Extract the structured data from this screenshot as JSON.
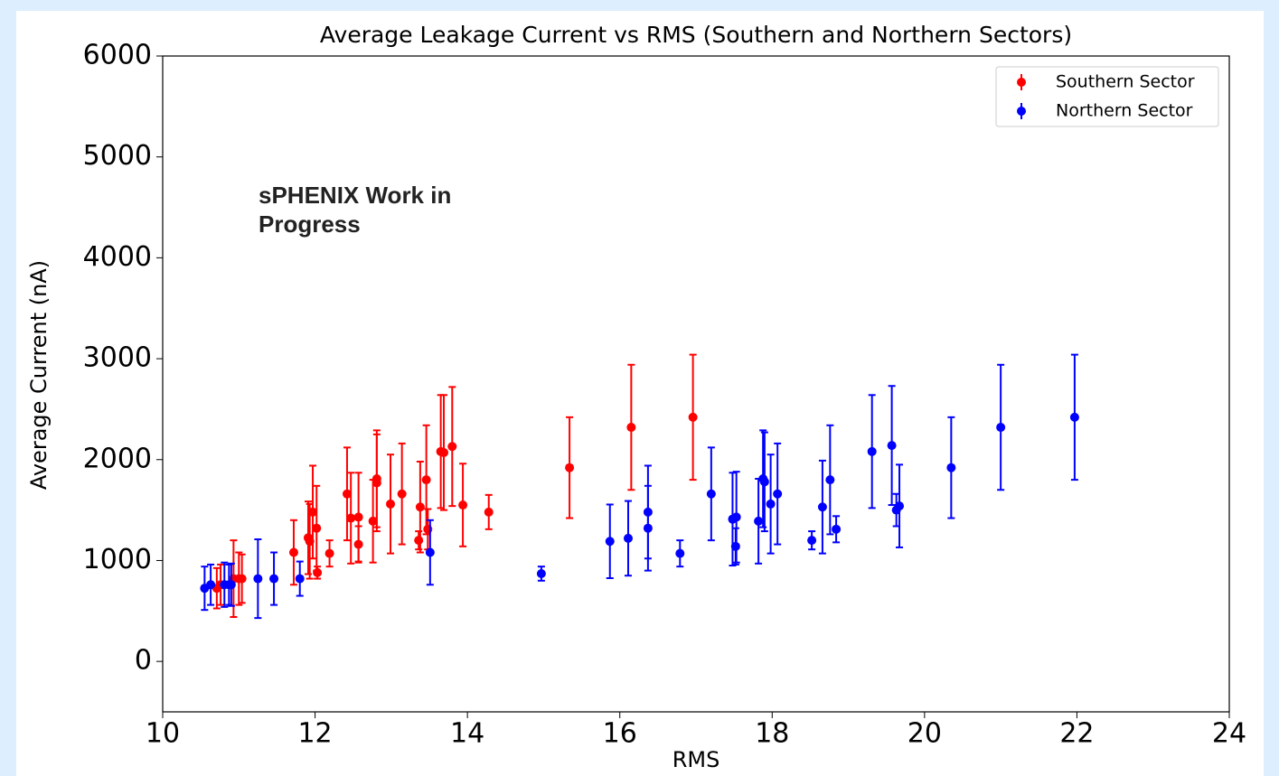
{
  "chart_data": {
    "type": "scatter",
    "title": "Average Leakage Current vs RMS (Southern and Northern Sectors)",
    "x_label": "RMS",
    "y_label": "Average Current (nA)",
    "annotation": "sPHENIX Work in Progress",
    "xlim": [
      10,
      24
    ],
    "xticks": [
      10,
      12,
      14,
      16,
      18,
      20,
      22,
      24
    ],
    "ylim": [
      -500,
      6000
    ],
    "yticks": [
      0,
      1000,
      2000,
      3000,
      4000,
      5000,
      6000
    ],
    "legend": "upper right",
    "series": [
      {
        "name": "Southern Sector",
        "color": "#ff0000",
        "x": [
          10.71,
          10.76,
          10.93,
          11.0,
          11.04,
          11.72,
          11.91,
          11.93,
          11.97,
          12.02,
          12.03,
          12.19,
          12.42,
          12.47,
          12.57,
          12.57,
          12.76,
          12.81,
          12.81,
          12.99,
          13.14,
          13.36,
          13.38,
          13.46,
          13.48,
          13.65,
          13.69,
          13.8,
          13.94,
          14.28,
          15.34,
          16.15,
          16.96
        ],
        "values": [
          725,
          760,
          820,
          820,
          820,
          1080,
          1225,
          1190,
          1480,
          1320,
          880,
          1070,
          1660,
          1420,
          1160,
          1430,
          1390,
          1810,
          1770,
          1560,
          1660,
          1200,
          1530,
          1800,
          1310,
          2080,
          2070,
          2130,
          1550,
          1480,
          1920,
          2320,
          2420
        ],
        "errors": [
          200,
          200,
          380,
          260,
          240,
          320,
          360,
          370,
          460,
          420,
          60,
          130,
          460,
          450,
          180,
          440,
          410,
          480,
          480,
          490,
          500,
          90,
          450,
          540,
          200,
          560,
          570,
          590,
          410,
          170,
          500,
          620,
          620
        ]
      },
      {
        "name": "Northern Sector",
        "color": "#0000ff",
        "x": [
          10.55,
          10.63,
          10.81,
          10.87,
          10.9,
          11.25,
          11.46,
          11.8,
          13.51,
          14.97,
          15.87,
          16.11,
          16.37,
          16.37,
          16.79,
          17.2,
          17.48,
          17.52,
          17.53,
          17.82,
          17.88,
          17.9,
          17.98,
          18.07,
          18.52,
          18.66,
          18.76,
          18.84,
          19.31,
          19.57,
          19.63,
          19.67,
          20.35,
          21.0,
          21.97
        ],
        "values": [
          725,
          760,
          760,
          760,
          760,
          820,
          820,
          820,
          1080,
          870,
          1190,
          1220,
          1480,
          1320,
          1070,
          1660,
          1410,
          1140,
          1430,
          1390,
          1810,
          1780,
          1560,
          1660,
          1200,
          1530,
          1800,
          1310,
          2080,
          2140,
          1500,
          1540,
          1920,
          2320,
          2420
        ],
        "errors": [
          215,
          200,
          220,
          200,
          210,
          390,
          260,
          170,
          320,
          70,
          365,
          370,
          460,
          420,
          130,
          460,
          460,
          180,
          450,
          420,
          480,
          490,
          490,
          500,
          90,
          460,
          540,
          130,
          560,
          590,
          160,
          410,
          500,
          620,
          620
        ]
      }
    ]
  }
}
